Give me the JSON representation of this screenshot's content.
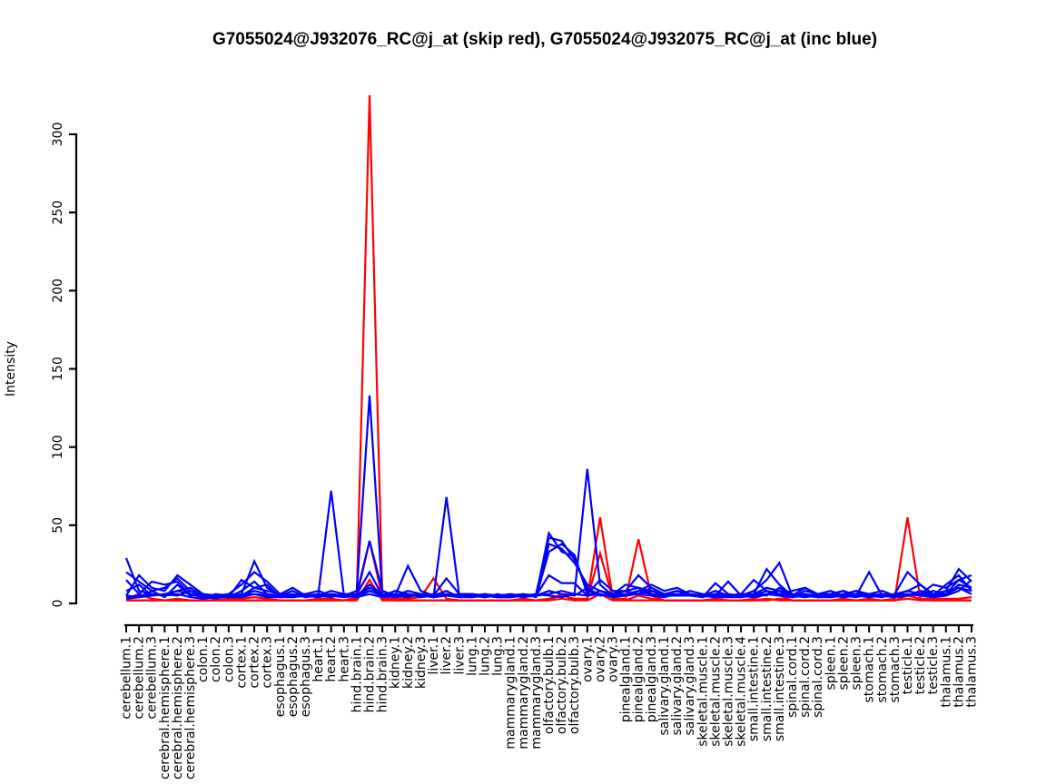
{
  "chart_data": {
    "type": "line",
    "title": "G7055024@J932076_RC@j_at (skip red), G7055024@J932075_RC@j_at (inc blue)",
    "xlabel": "",
    "ylabel": "Intensity",
    "yticks": [
      0,
      50,
      100,
      150,
      200,
      250,
      300
    ],
    "ylim": [
      0,
      330
    ],
    "grid": false,
    "legend": "none (series identified by color in title: skip = red, inc = blue)",
    "colors": {
      "skip": "#ff0000",
      "inc": "#0000ff",
      "axis": "#000000"
    },
    "categories": [
      "cerebellum.1",
      "cerebellum.2",
      "cerebellum.3",
      "cerebral.hemisphere.1",
      "cerebral.hemisphere.2",
      "cerebral.hemisphere.3",
      "colon.1",
      "colon.2",
      "colon.3",
      "cortex.1",
      "cortex.2",
      "cortex.3",
      "esophagus.1",
      "esophagus.2",
      "esophagus.3",
      "heart.1",
      "heart.2",
      "heart.3",
      "hind.brain.1",
      "hind.brain.2",
      "hind.brain.3",
      "kidney.1",
      "kidney.2",
      "kidney.3",
      "liver.1",
      "liver.2",
      "liver.3",
      "lung.1",
      "lung.2",
      "lung.3",
      "mammarygland.1",
      "mammarygland.2",
      "mammarygland.3",
      "olfactory.bulb.1",
      "olfactory.bulb.2",
      "olfactory.bulb.3",
      "ovary.1",
      "ovary.2",
      "ovary.3",
      "pinealgland.1",
      "pinealgland.2",
      "pinealgland.3",
      "salivary.gland.1",
      "salivary.gland.2",
      "salivary.gland.3",
      "skeletal.muscle.1",
      "skeletal.muscle.2",
      "skeletal.muscle.3",
      "skeletal.muscle.4",
      "small.intestine.1",
      "small.intestine.2",
      "small.intestine.3",
      "spinal.cord.1",
      "spinal.cord.2",
      "spinal.cord.3",
      "spleen.1",
      "spleen.2",
      "spleen.3",
      "stomach.1",
      "stomach.2",
      "stomach.3",
      "testicle.1",
      "testicle.2",
      "testicle.3",
      "thalamus.1",
      "thalamus.2",
      "thalamus.3"
    ],
    "series": [
      {
        "name": "skip.red.1",
        "color": "#ff0000",
        "values": [
          2,
          2,
          2,
          2,
          2,
          2,
          2,
          2,
          2,
          2,
          2,
          2,
          2,
          2,
          2,
          2,
          2,
          2,
          3,
          325,
          3,
          2,
          2,
          2,
          2,
          2,
          2,
          2,
          2,
          2,
          2,
          2,
          2,
          2,
          3,
          2,
          3,
          55,
          3,
          3,
          41,
          5,
          2,
          2,
          2,
          2,
          2,
          2,
          2,
          2,
          3,
          2,
          2,
          2,
          2,
          2,
          2,
          2,
          2,
          2,
          3,
          55,
          3,
          2,
          2,
          2,
          2
        ]
      },
      {
        "name": "skip.red.2",
        "color": "#ff0000",
        "values": [
          3,
          6,
          3,
          2,
          3,
          2,
          2,
          2,
          3,
          3,
          4,
          3,
          2,
          2,
          2,
          3,
          3,
          2,
          4,
          40,
          4,
          3,
          3,
          4,
          16,
          3,
          2,
          2,
          2,
          2,
          2,
          3,
          2,
          3,
          5,
          3,
          3,
          32,
          3,
          2,
          5,
          3,
          2,
          2,
          2,
          2,
          3,
          2,
          2,
          3,
          6,
          5,
          2,
          2,
          2,
          2,
          3,
          2,
          3,
          2,
          2,
          5,
          3,
          3,
          3,
          3,
          4
        ]
      },
      {
        "name": "skip.red.3",
        "color": "#ff0000",
        "values": [
          2,
          2,
          2,
          2,
          2,
          2,
          2,
          2,
          2,
          2,
          2,
          2,
          2,
          2,
          2,
          2,
          2,
          2,
          2,
          15,
          2,
          2,
          2,
          2,
          2,
          2,
          2,
          2,
          2,
          2,
          2,
          2,
          2,
          2,
          6,
          2,
          2,
          6,
          2,
          2,
          2,
          2,
          2,
          2,
          2,
          2,
          2,
          2,
          2,
          2,
          2,
          3,
          2,
          2,
          2,
          2,
          2,
          2,
          2,
          2,
          2,
          3,
          2,
          2,
          2,
          2,
          2
        ]
      },
      {
        "name": "inc.blue.1",
        "color": "#0000ff",
        "values": [
          29,
          8,
          6,
          5,
          8,
          6,
          4,
          3,
          5,
          6,
          27,
          10,
          5,
          6,
          4,
          6,
          72,
          5,
          8,
          133,
          6,
          5,
          6,
          5,
          4,
          6,
          5,
          4,
          5,
          4,
          4,
          5,
          5,
          45,
          33,
          30,
          8,
          6,
          4,
          6,
          8,
          6,
          5,
          6,
          5,
          4,
          13,
          6,
          4,
          5,
          8,
          6,
          4,
          5,
          4,
          5,
          6,
          5,
          6,
          5,
          4,
          5,
          8,
          5,
          6,
          10,
          8
        ]
      },
      {
        "name": "inc.blue.2",
        "color": "#0000ff",
        "values": [
          20,
          14,
          8,
          10,
          16,
          8,
          5,
          4,
          6,
          12,
          20,
          14,
          6,
          5,
          5,
          5,
          8,
          6,
          6,
          40,
          8,
          5,
          8,
          6,
          4,
          68,
          5,
          5,
          4,
          5,
          5,
          4,
          6,
          42,
          40,
          28,
          10,
          5,
          6,
          8,
          6,
          10,
          6,
          8,
          5,
          5,
          6,
          5,
          6,
          6,
          22,
          12,
          5,
          4,
          5,
          6,
          8,
          5,
          5,
          6,
          5,
          8,
          12,
          6,
          8,
          22,
          14
        ]
      },
      {
        "name": "inc.blue.3",
        "color": "#0000ff",
        "values": [
          5,
          18,
          10,
          8,
          18,
          12,
          6,
          5,
          4,
          8,
          14,
          6,
          4,
          5,
          6,
          5,
          6,
          4,
          6,
          20,
          5,
          5,
          24,
          8,
          5,
          5,
          6,
          6,
          5,
          4,
          6,
          5,
          5,
          38,
          35,
          26,
          12,
          8,
          5,
          8,
          10,
          6,
          5,
          5,
          8,
          6,
          5,
          14,
          5,
          4,
          6,
          8,
          6,
          5,
          4,
          4,
          5,
          6,
          5,
          4,
          6,
          20,
          12,
          5,
          12,
          18,
          8
        ]
      },
      {
        "name": "inc.blue.4",
        "color": "#0000ff",
        "values": [
          15,
          6,
          14,
          12,
          14,
          6,
          4,
          6,
          5,
          5,
          10,
          8,
          6,
          10,
          5,
          4,
          6,
          5,
          5,
          12,
          6,
          4,
          6,
          5,
          6,
          5,
          4,
          4,
          6,
          5,
          5,
          6,
          4,
          33,
          38,
          31,
          6,
          15,
          8,
          8,
          18,
          10,
          6,
          5,
          6,
          5,
          4,
          6,
          5,
          8,
          15,
          26,
          5,
          6,
          4,
          6,
          5,
          8,
          6,
          5,
          4,
          6,
          5,
          8,
          6,
          15,
          18
        ]
      },
      {
        "name": "inc.blue.5",
        "color": "#0000ff",
        "values": [
          8,
          12,
          5,
          6,
          8,
          10,
          5,
          4,
          4,
          15,
          10,
          12,
          4,
          5,
          6,
          8,
          5,
          4,
          5,
          8,
          6,
          6,
          5,
          5,
          5,
          16,
          6,
          6,
          5,
          4,
          5,
          6,
          5,
          18,
          13,
          13,
          5,
          8,
          6,
          5,
          8,
          12,
          8,
          10,
          6,
          4,
          6,
          5,
          6,
          15,
          8,
          6,
          8,
          10,
          5,
          5,
          6,
          8,
          4,
          6,
          5,
          5,
          8,
          6,
          5,
          12,
          10
        ]
      },
      {
        "name": "inc.blue.6",
        "color": "#0000ff",
        "values": [
          4,
          5,
          6,
          5,
          6,
          4,
          3,
          4,
          5,
          5,
          8,
          6,
          5,
          4,
          5,
          4,
          6,
          5,
          5,
          10,
          6,
          4,
          5,
          6,
          5,
          8,
          4,
          5,
          4,
          6,
          4,
          5,
          5,
          6,
          8,
          6,
          86,
          12,
          5,
          6,
          6,
          8,
          5,
          8,
          6,
          5,
          5,
          4,
          4,
          6,
          10,
          8,
          4,
          8,
          6,
          6,
          8,
          5,
          20,
          5,
          6,
          8,
          6,
          12,
          10,
          15,
          10
        ]
      },
      {
        "name": "inc.blue.7",
        "color": "#0000ff",
        "values": [
          5,
          4,
          8,
          4,
          12,
          5,
          6,
          5,
          4,
          4,
          6,
          5,
          5,
          8,
          4,
          5,
          4,
          6,
          4,
          8,
          5,
          8,
          6,
          4,
          5,
          6,
          5,
          4,
          5,
          5,
          6,
          4,
          5,
          8,
          6,
          5,
          10,
          5,
          6,
          12,
          10,
          8,
          6,
          5,
          5,
          5,
          8,
          5,
          4,
          6,
          5,
          10,
          5,
          10,
          6,
          8,
          5,
          4,
          6,
          8,
          5,
          6,
          5,
          4,
          5,
          8,
          15
        ]
      },
      {
        "name": "inc.blue.8",
        "color": "#0000ff",
        "values": [
          3,
          4,
          5,
          6,
          5,
          8,
          4,
          5,
          6,
          5,
          6,
          4,
          4,
          4,
          5,
          6,
          5,
          5,
          4,
          6,
          4,
          5,
          4,
          6,
          4,
          5,
          5,
          5,
          6,
          4,
          4,
          5,
          6,
          5,
          4,
          6,
          5,
          6,
          4,
          5,
          6,
          5,
          4,
          6,
          5,
          5,
          4,
          4,
          6,
          5,
          6,
          5,
          4,
          6,
          5,
          5,
          4,
          5,
          4,
          5,
          5,
          5,
          6,
          5,
          8,
          10,
          6
        ]
      }
    ]
  }
}
